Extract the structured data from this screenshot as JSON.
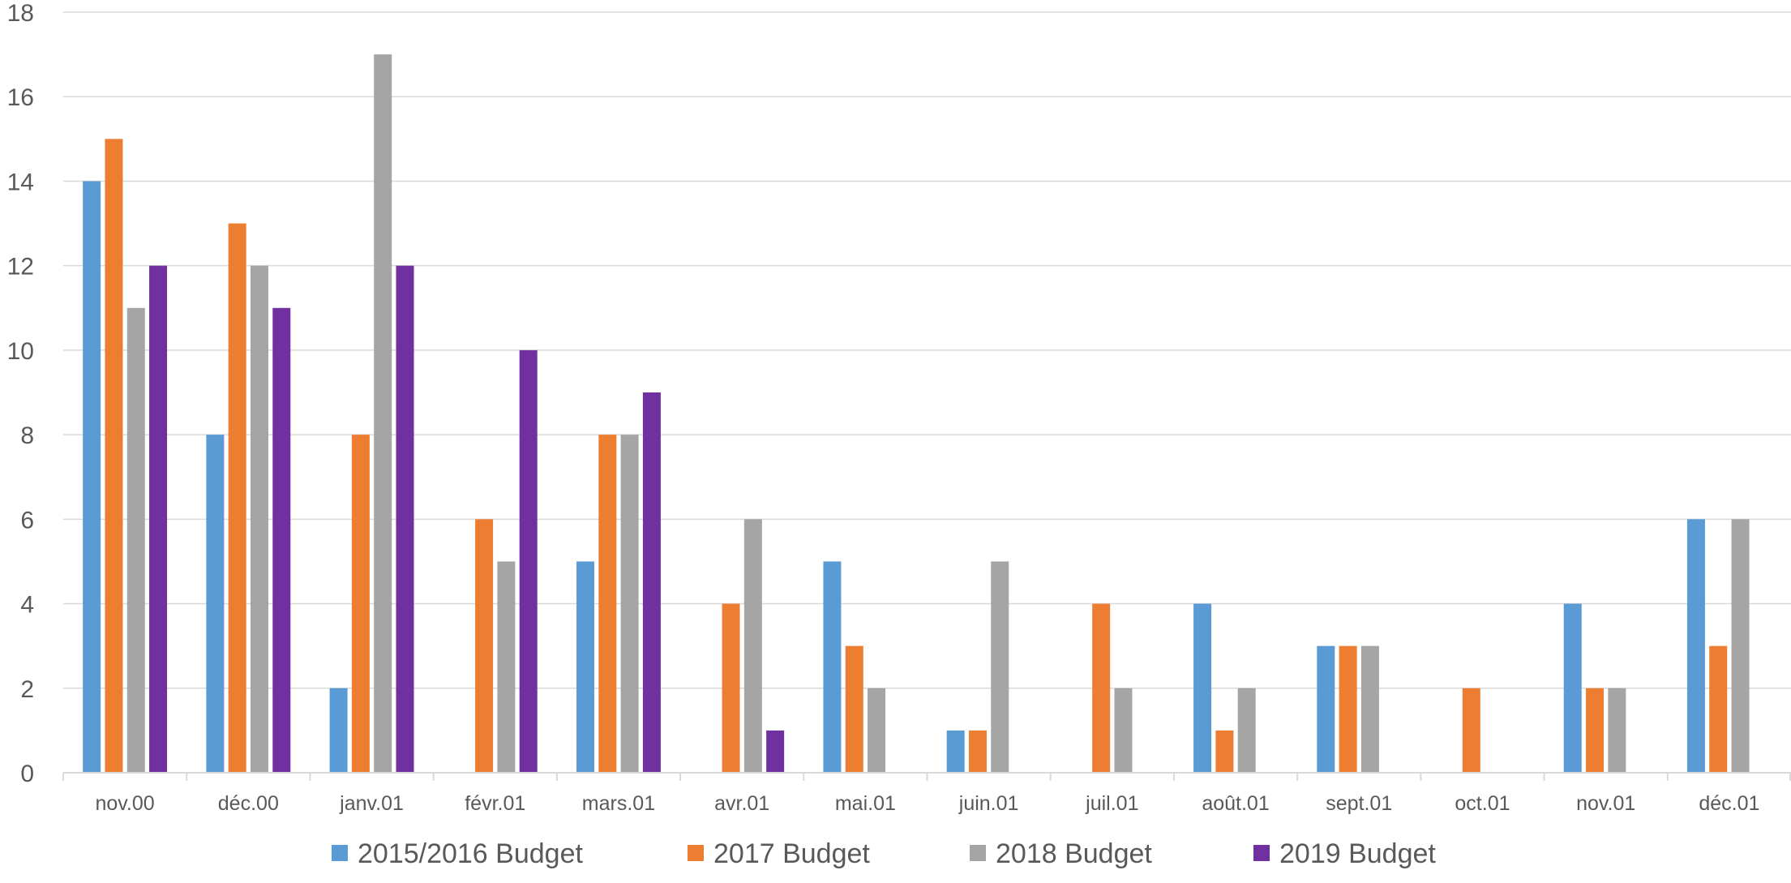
{
  "chart_data": {
    "type": "bar",
    "title": "",
    "xlabel": "",
    "ylabel": "",
    "ylim": [
      0,
      18
    ],
    "yticks": [
      0,
      2,
      4,
      6,
      8,
      10,
      12,
      14,
      16,
      18
    ],
    "grid": true,
    "legend_position": "bottom",
    "categories": [
      "nov.00",
      "déc.00",
      "janv.01",
      "févr.01",
      "mars.01",
      "avr.01",
      "mai.01",
      "juin.01",
      "juil.01",
      "août.01",
      "sept.01",
      "oct.01",
      "nov.01",
      "déc.01"
    ],
    "series": [
      {
        "name": "2015/2016 Budget",
        "color": "#5B9BD5",
        "values": [
          14,
          8,
          2,
          0,
          5,
          0,
          5,
          1,
          0,
          4,
          3,
          0,
          4,
          6
        ]
      },
      {
        "name": "2017 Budget",
        "color": "#ED7D31",
        "values": [
          15,
          13,
          8,
          6,
          8,
          4,
          3,
          1,
          4,
          1,
          3,
          2,
          2,
          3
        ]
      },
      {
        "name": "2018 Budget",
        "color": "#A5A5A5",
        "values": [
          11,
          12,
          17,
          5,
          8,
          6,
          2,
          5,
          2,
          2,
          3,
          0,
          2,
          6
        ]
      },
      {
        "name": "2019 Budget",
        "color": "#7030A0",
        "values": [
          12,
          11,
          12,
          10,
          9,
          1,
          0,
          0,
          0,
          0,
          0,
          0,
          0,
          0
        ]
      }
    ]
  }
}
